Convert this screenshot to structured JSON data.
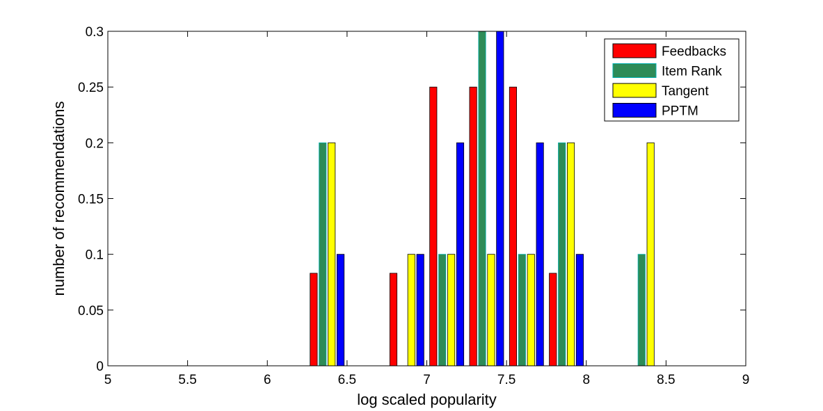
{
  "chart_data": {
    "type": "bar",
    "xlabel": "log scaled popularity",
    "ylabel": "number of recommendations",
    "xlim": [
      5,
      9
    ],
    "ylim": [
      0,
      0.3
    ],
    "xticks": [
      "5",
      "5.5",
      "6",
      "6.5",
      "7",
      "7.5",
      "8",
      "8.5",
      "9"
    ],
    "yticks": [
      "0",
      "0.05",
      "0.1",
      "0.15",
      "0.2",
      "0.25",
      "0.3"
    ],
    "bin_centers": [
      5.125,
      5.375,
      5.625,
      5.875,
      6.125,
      6.375,
      6.625,
      6.875,
      7.125,
      7.375,
      7.625,
      7.875,
      8.125,
      8.375,
      8.625,
      8.875
    ],
    "legend_position": "top-right",
    "grid": false,
    "series": [
      {
        "name": "Feedbacks",
        "color": "#ff0000",
        "values": [
          0,
          0,
          0,
          0,
          0,
          0.083,
          0,
          0.083,
          0.25,
          0.25,
          0.25,
          0.083,
          0,
          0,
          0,
          0
        ]
      },
      {
        "name": "Item Rank",
        "color": "#2e8b57",
        "values": [
          0,
          0,
          0,
          0,
          0,
          0.2,
          0,
          0,
          0.1,
          0.3,
          0.1,
          0.2,
          0,
          0.1,
          0,
          0
        ]
      },
      {
        "name": "Tangent",
        "color": "#ffff00",
        "values": [
          0,
          0,
          0,
          0,
          0,
          0.2,
          0,
          0.1,
          0.1,
          0.1,
          0.1,
          0.2,
          0,
          0.2,
          0,
          0
        ]
      },
      {
        "name": "PPTM",
        "color": "#0000ff",
        "values": [
          0,
          0,
          0,
          0,
          0,
          0.1,
          0,
          0.1,
          0.2,
          0.3,
          0.2,
          0.1,
          0,
          0,
          0,
          0
        ]
      }
    ]
  }
}
